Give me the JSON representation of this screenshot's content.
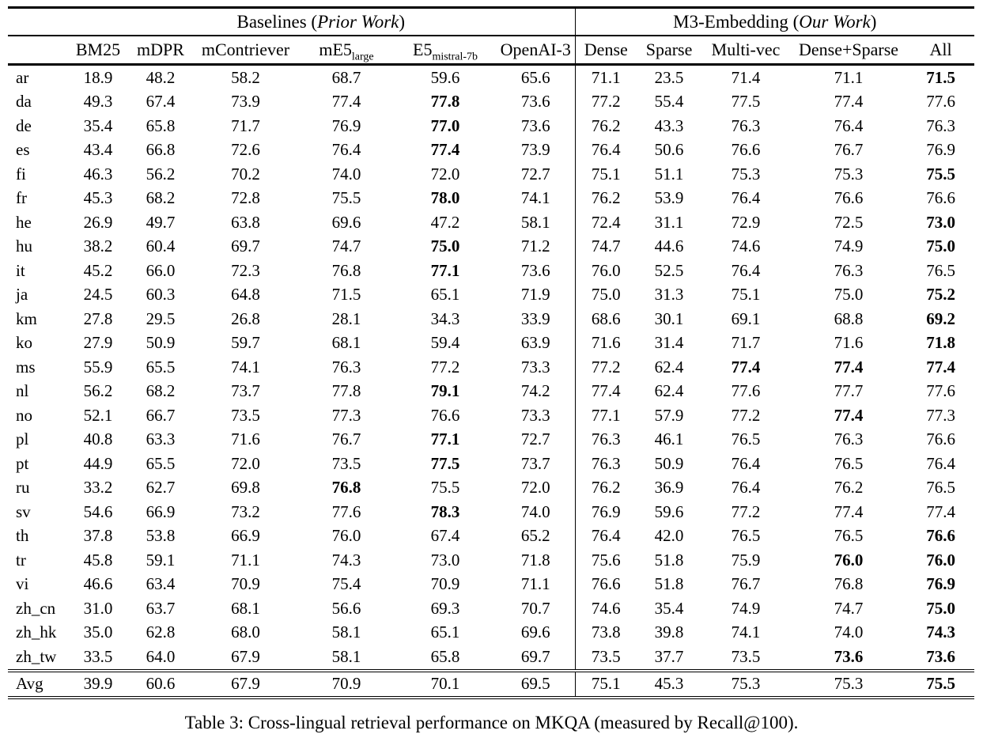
{
  "table": {
    "groups": {
      "baselines": {
        "prefix": "Baselines (",
        "italic": "Prior Work",
        "suffix": ")"
      },
      "m3": {
        "prefix": "M3-Embedding (",
        "italic": "Our Work",
        "suffix": ")"
      }
    },
    "columns": [
      {
        "label": "BM25"
      },
      {
        "label": "mDPR"
      },
      {
        "label": "mContriever"
      },
      {
        "label": "mE5",
        "sub": "large"
      },
      {
        "label": "E5",
        "sub": "mistral-7b"
      },
      {
        "label": "OpenAI-3"
      },
      {
        "label": "Dense"
      },
      {
        "label": "Sparse"
      },
      {
        "label": "Multi-vec"
      },
      {
        "label": "Dense+Sparse"
      },
      {
        "label": "All"
      }
    ],
    "rows": [
      {
        "lang": "ar",
        "values": [
          "18.9",
          "48.2",
          "58.2",
          "68.7",
          "59.6",
          "65.6",
          "71.1",
          "23.5",
          "71.4",
          "71.1",
          "71.5"
        ],
        "bold": [
          10
        ]
      },
      {
        "lang": "da",
        "values": [
          "49.3",
          "67.4",
          "73.9",
          "77.4",
          "77.8",
          "73.6",
          "77.2",
          "55.4",
          "77.5",
          "77.4",
          "77.6"
        ],
        "bold": [
          4
        ]
      },
      {
        "lang": "de",
        "values": [
          "35.4",
          "65.8",
          "71.7",
          "76.9",
          "77.0",
          "73.6",
          "76.2",
          "43.3",
          "76.3",
          "76.4",
          "76.3"
        ],
        "bold": [
          4
        ]
      },
      {
        "lang": "es",
        "values": [
          "43.4",
          "66.8",
          "72.6",
          "76.4",
          "77.4",
          "73.9",
          "76.4",
          "50.6",
          "76.6",
          "76.7",
          "76.9"
        ],
        "bold": [
          4
        ]
      },
      {
        "lang": "fi",
        "values": [
          "46.3",
          "56.2",
          "70.2",
          "74.0",
          "72.0",
          "72.7",
          "75.1",
          "51.1",
          "75.3",
          "75.3",
          "75.5"
        ],
        "bold": [
          10
        ]
      },
      {
        "lang": "fr",
        "values": [
          "45.3",
          "68.2",
          "72.8",
          "75.5",
          "78.0",
          "74.1",
          "76.2",
          "53.9",
          "76.4",
          "76.6",
          "76.6"
        ],
        "bold": [
          4
        ]
      },
      {
        "lang": "he",
        "values": [
          "26.9",
          "49.7",
          "63.8",
          "69.6",
          "47.2",
          "58.1",
          "72.4",
          "31.1",
          "72.9",
          "72.5",
          "73.0"
        ],
        "bold": [
          10
        ]
      },
      {
        "lang": "hu",
        "values": [
          "38.2",
          "60.4",
          "69.7",
          "74.7",
          "75.0",
          "71.2",
          "74.7",
          "44.6",
          "74.6",
          "74.9",
          "75.0"
        ],
        "bold": [
          4,
          10
        ]
      },
      {
        "lang": "it",
        "values": [
          "45.2",
          "66.0",
          "72.3",
          "76.8",
          "77.1",
          "73.6",
          "76.0",
          "52.5",
          "76.4",
          "76.3",
          "76.5"
        ],
        "bold": [
          4
        ]
      },
      {
        "lang": "ja",
        "values": [
          "24.5",
          "60.3",
          "64.8",
          "71.5",
          "65.1",
          "71.9",
          "75.0",
          "31.3",
          "75.1",
          "75.0",
          "75.2"
        ],
        "bold": [
          10
        ]
      },
      {
        "lang": "km",
        "values": [
          "27.8",
          "29.5",
          "26.8",
          "28.1",
          "34.3",
          "33.9",
          "68.6",
          "30.1",
          "69.1",
          "68.8",
          "69.2"
        ],
        "bold": [
          10
        ]
      },
      {
        "lang": "ko",
        "values": [
          "27.9",
          "50.9",
          "59.7",
          "68.1",
          "59.4",
          "63.9",
          "71.6",
          "31.4",
          "71.7",
          "71.6",
          "71.8"
        ],
        "bold": [
          10
        ]
      },
      {
        "lang": "ms",
        "values": [
          "55.9",
          "65.5",
          "74.1",
          "76.3",
          "77.2",
          "73.3",
          "77.2",
          "62.4",
          "77.4",
          "77.4",
          "77.4"
        ],
        "bold": [
          8,
          9,
          10
        ]
      },
      {
        "lang": "nl",
        "values": [
          "56.2",
          "68.2",
          "73.7",
          "77.8",
          "79.1",
          "74.2",
          "77.4",
          "62.4",
          "77.6",
          "77.7",
          "77.6"
        ],
        "bold": [
          4
        ]
      },
      {
        "lang": "no",
        "values": [
          "52.1",
          "66.7",
          "73.5",
          "77.3",
          "76.6",
          "73.3",
          "77.1",
          "57.9",
          "77.2",
          "77.4",
          "77.3"
        ],
        "bold": [
          9
        ]
      },
      {
        "lang": "pl",
        "values": [
          "40.8",
          "63.3",
          "71.6",
          "76.7",
          "77.1",
          "72.7",
          "76.3",
          "46.1",
          "76.5",
          "76.3",
          "76.6"
        ],
        "bold": [
          4
        ]
      },
      {
        "lang": "pt",
        "values": [
          "44.9",
          "65.5",
          "72.0",
          "73.5",
          "77.5",
          "73.7",
          "76.3",
          "50.9",
          "76.4",
          "76.5",
          "76.4"
        ],
        "bold": [
          4
        ]
      },
      {
        "lang": "ru",
        "values": [
          "33.2",
          "62.7",
          "69.8",
          "76.8",
          "75.5",
          "72.0",
          "76.2",
          "36.9",
          "76.4",
          "76.2",
          "76.5"
        ],
        "bold": [
          3
        ]
      },
      {
        "lang": "sv",
        "values": [
          "54.6",
          "66.9",
          "73.2",
          "77.6",
          "78.3",
          "74.0",
          "76.9",
          "59.6",
          "77.2",
          "77.4",
          "77.4"
        ],
        "bold": [
          4
        ]
      },
      {
        "lang": "th",
        "values": [
          "37.8",
          "53.8",
          "66.9",
          "76.0",
          "67.4",
          "65.2",
          "76.4",
          "42.0",
          "76.5",
          "76.5",
          "76.6"
        ],
        "bold": [
          10
        ]
      },
      {
        "lang": "tr",
        "values": [
          "45.8",
          "59.1",
          "71.1",
          "74.3",
          "73.0",
          "71.8",
          "75.6",
          "51.8",
          "75.9",
          "76.0",
          "76.0"
        ],
        "bold": [
          9,
          10
        ]
      },
      {
        "lang": "vi",
        "values": [
          "46.6",
          "63.4",
          "70.9",
          "75.4",
          "70.9",
          "71.1",
          "76.6",
          "51.8",
          "76.7",
          "76.8",
          "76.9"
        ],
        "bold": [
          10
        ]
      },
      {
        "lang": "zh_cn",
        "values": [
          "31.0",
          "63.7",
          "68.1",
          "56.6",
          "69.3",
          "70.7",
          "74.6",
          "35.4",
          "74.9",
          "74.7",
          "75.0"
        ],
        "bold": [
          10
        ]
      },
      {
        "lang": "zh_hk",
        "values": [
          "35.0",
          "62.8",
          "68.0",
          "58.1",
          "65.1",
          "69.6",
          "73.8",
          "39.8",
          "74.1",
          "74.0",
          "74.3"
        ],
        "bold": [
          10
        ]
      },
      {
        "lang": "zh_tw",
        "values": [
          "33.5",
          "64.0",
          "67.9",
          "58.1",
          "65.8",
          "69.7",
          "73.5",
          "37.7",
          "73.5",
          "73.6",
          "73.6"
        ],
        "bold": [
          9,
          10
        ]
      }
    ],
    "avg_row": {
      "lang": "Avg",
      "values": [
        "39.9",
        "60.6",
        "67.9",
        "70.9",
        "70.1",
        "69.5",
        "75.1",
        "45.3",
        "75.3",
        "75.3",
        "75.5"
      ],
      "bold": [
        10
      ]
    }
  },
  "caption": "Table 3: Cross-lingual retrieval performance on MKQA (measured by Recall@100)."
}
